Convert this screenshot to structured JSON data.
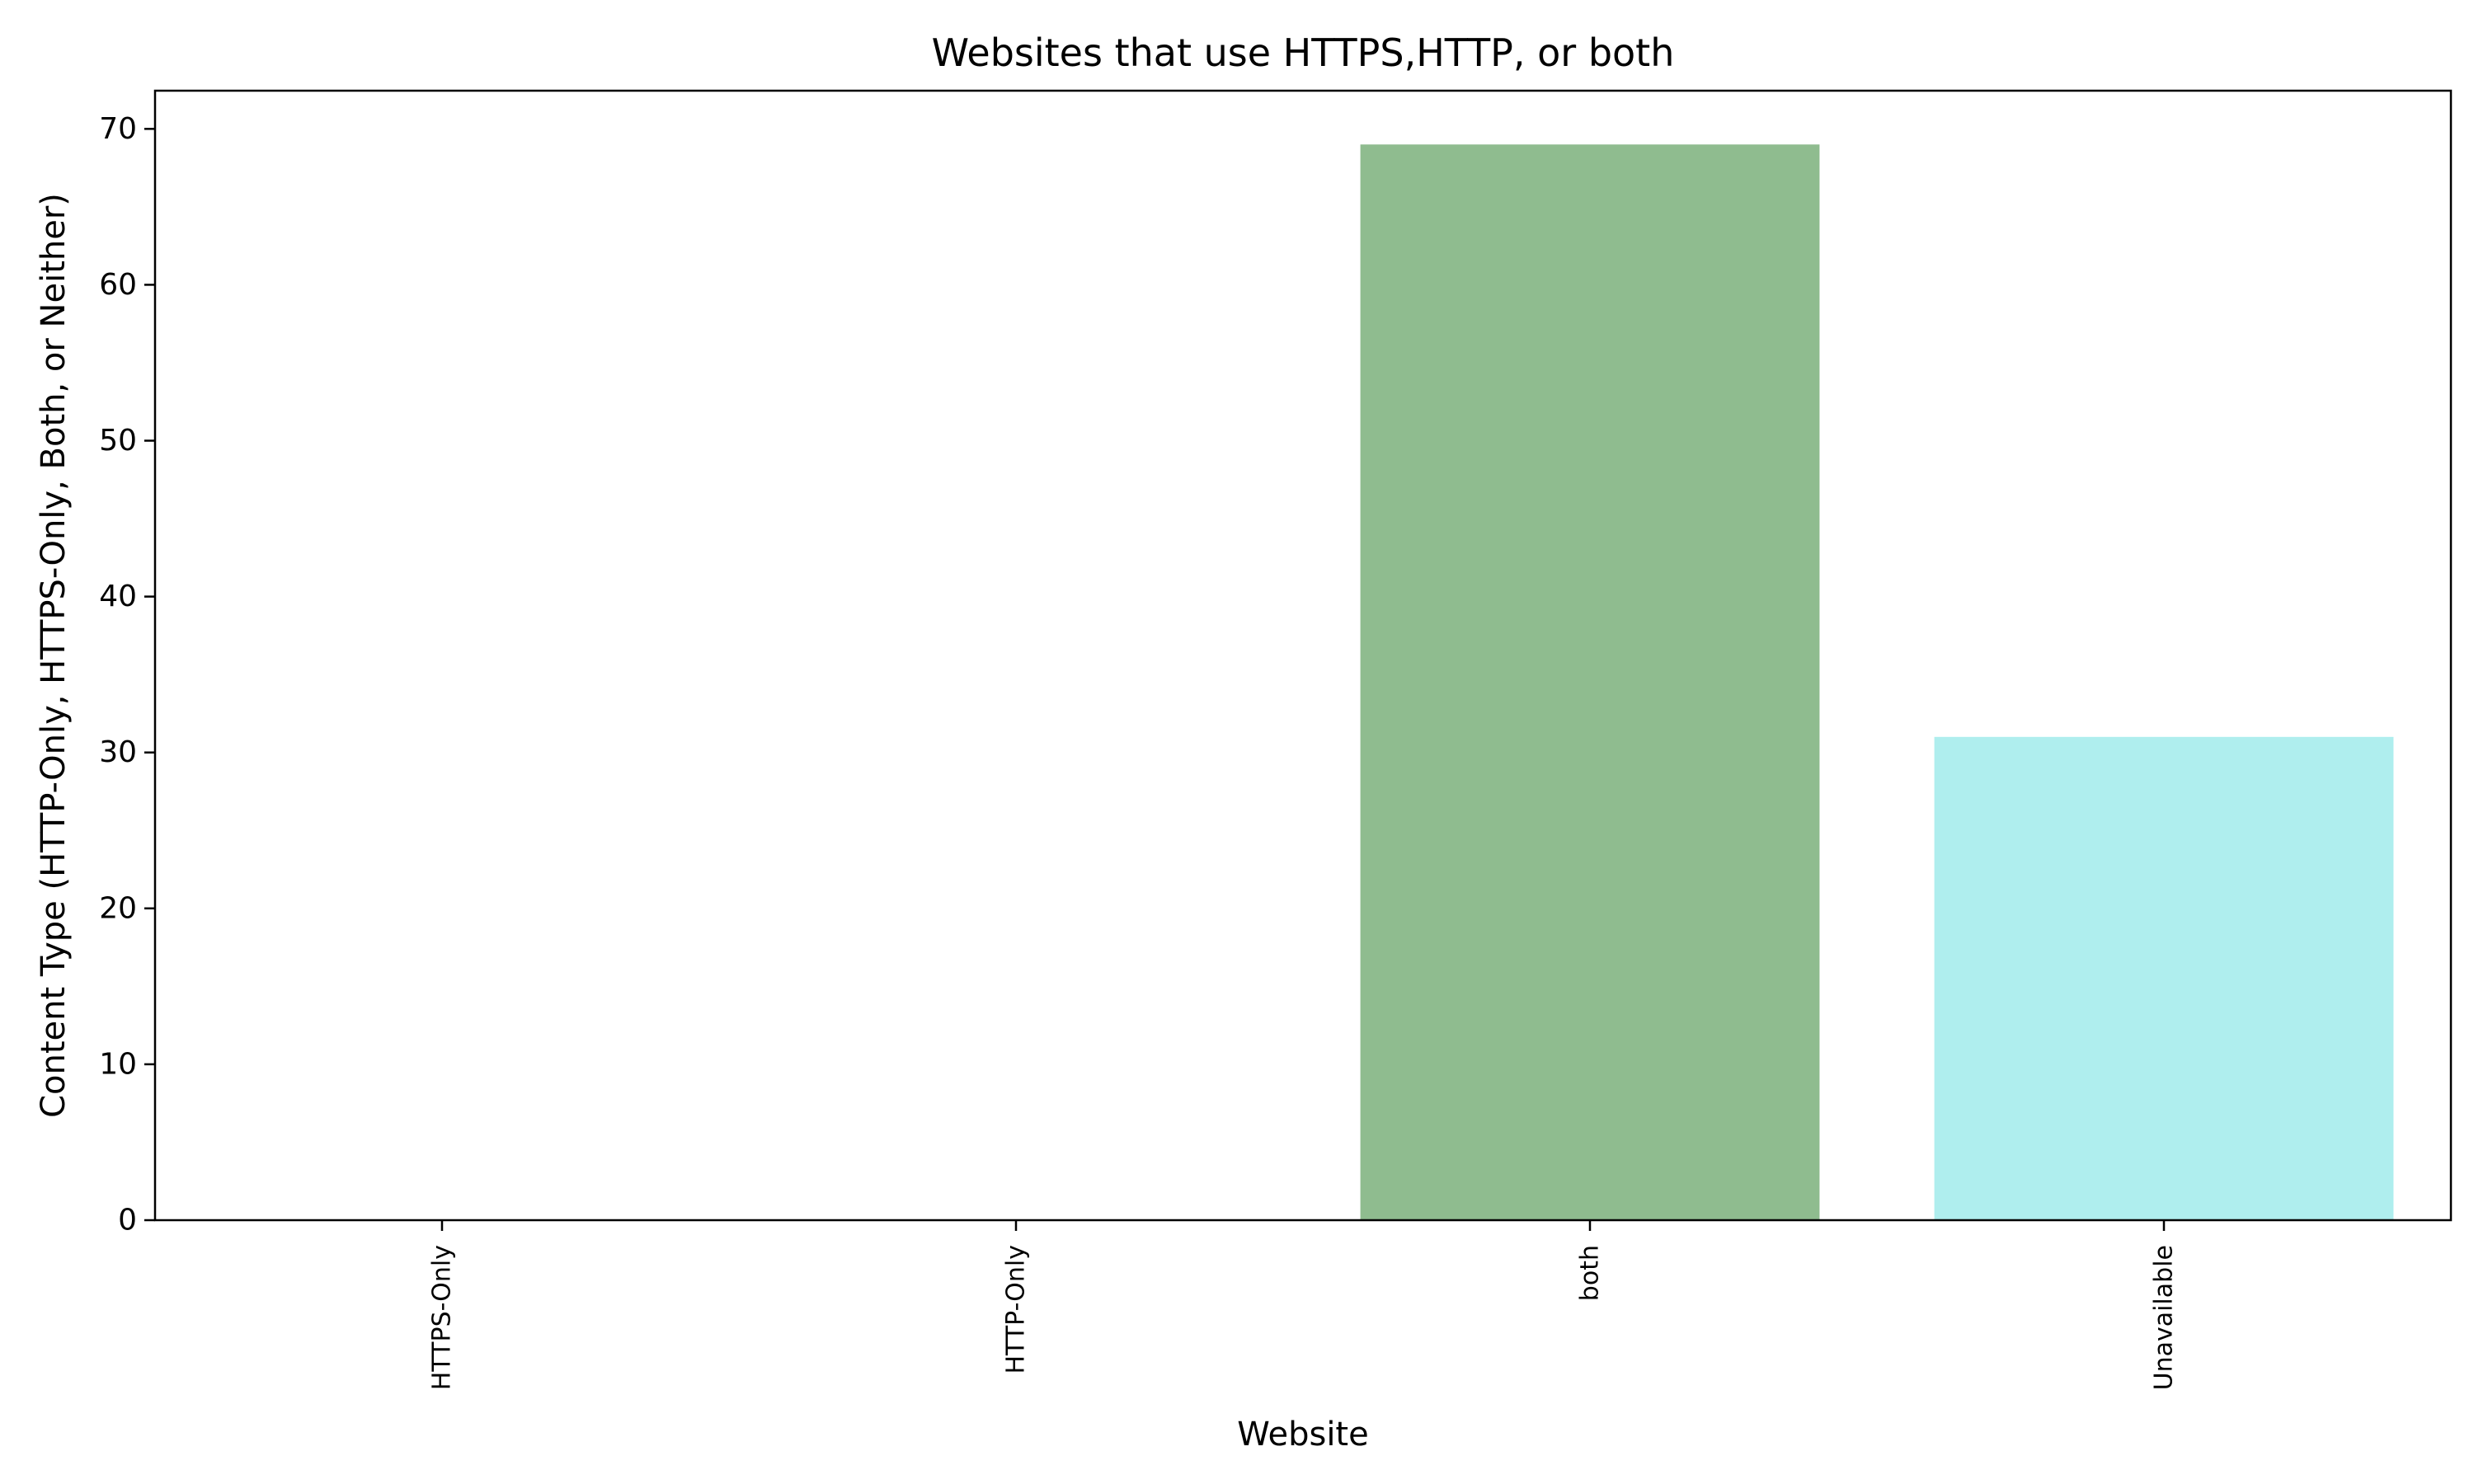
{
  "chart_data": {
    "type": "bar",
    "title": "Websites that use HTTPS,HTTP, or both",
    "xlabel": "Website",
    "ylabel": "Content Type (HTTP-Only, HTTPS-Only, Both, or Neither)",
    "categories": [
      "HTTPS-Only",
      "HTTP-Only",
      "both",
      "Unavailable"
    ],
    "values": [
      0,
      0,
      69,
      31
    ],
    "colors": [
      "#1f77b4",
      "#1f77b4",
      "#8fbc8f",
      "#afeeee"
    ],
    "ylim": [
      0,
      72.45
    ],
    "yticks": [
      0,
      10,
      20,
      30,
      40,
      50,
      60,
      70
    ],
    "grid": false,
    "legend": "none",
    "x_tick_rotation": "vertical"
  }
}
